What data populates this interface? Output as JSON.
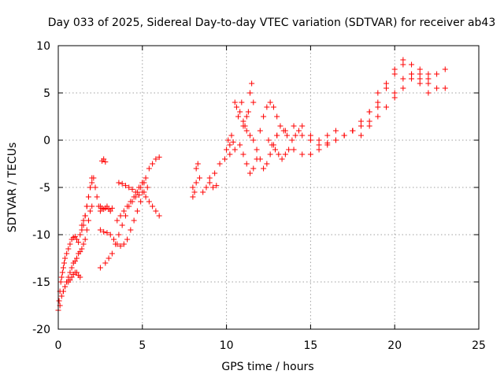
{
  "chart_data": {
    "type": "scatter",
    "title": "Day 033 of 2025, Sidereal Day-to-day VTEC variation (SDTVAR) for receiver ab43",
    "xlabel": "GPS time / hours",
    "ylabel": "SDTVAR / TECUs",
    "xlim": [
      0,
      25
    ],
    "ylim": [
      -20,
      10
    ],
    "x_ticks": [
      0,
      5,
      10,
      15,
      20,
      25
    ],
    "y_ticks": [
      -20,
      -15,
      -10,
      -5,
      0,
      5,
      10
    ],
    "x_tick_labels": [
      "0",
      "5",
      "10",
      "15",
      "20",
      "25"
    ],
    "y_tick_labels": [
      "-20",
      "-15",
      "-10",
      "-5",
      "0",
      "5",
      "10"
    ],
    "grid": true,
    "legend": "none",
    "marker": "+",
    "marker_color": "#ff0000",
    "series": [
      {
        "x": [
          0.0,
          0.05,
          0.1,
          0.15,
          0.2,
          0.25,
          0.3,
          0.35,
          0.4,
          0.5,
          0.6,
          0.7,
          0.8,
          0.9,
          1.0,
          1.1,
          1.2,
          1.3,
          1.4,
          1.5,
          1.6,
          1.7,
          1.8,
          1.9,
          2.0
        ],
        "y": [
          -18.0,
          -17.0,
          -16.0,
          -15.0,
          -14.5,
          -14.0,
          -13.5,
          -13.0,
          -12.5,
          -12.0,
          -11.5,
          -11.0,
          -10.5,
          -10.3,
          -10.2,
          -10.5,
          -10.8,
          -10.0,
          -9.5,
          -9.0,
          -8.0,
          -7.0,
          -6.0,
          -5.0,
          -4.0
        ]
      },
      {
        "x": [
          0.1,
          0.2,
          0.3,
          0.4,
          0.5,
          0.6,
          0.7,
          0.8,
          0.9,
          1.0,
          1.1,
          1.2,
          1.3,
          1.4,
          1.5,
          1.6,
          1.7,
          1.8,
          1.9,
          2.0
        ],
        "y": [
          -17.5,
          -16.5,
          -16.0,
          -15.5,
          -15.0,
          -14.5,
          -14.0,
          -13.5,
          -13.0,
          -12.8,
          -12.5,
          -12.0,
          -11.8,
          -11.5,
          -11.0,
          -10.5,
          -9.5,
          -8.5,
          -7.5,
          -7.0
        ]
      },
      {
        "x": [
          0.3,
          0.4,
          0.5,
          0.6,
          0.7,
          0.8,
          0.9,
          1.0,
          1.1,
          1.2,
          1.3
        ],
        "y": [
          -16.0,
          -15.5,
          -15.0,
          -15.0,
          -14.8,
          -14.5,
          -14.2,
          -14.0,
          -14.0,
          -14.3,
          -14.5
        ]
      },
      {
        "x": [
          1.4,
          1.5,
          1.6,
          1.7,
          1.8,
          1.9,
          2.0,
          2.1,
          2.2,
          2.3,
          2.4,
          2.5
        ],
        "y": [
          -9.0,
          -8.5,
          -8.0,
          -7.0,
          -6.0,
          -5.0,
          -4.5,
          -4.0,
          -5.0,
          -6.0,
          -7.0,
          -7.5
        ]
      },
      {
        "x": [
          2.5,
          2.6,
          2.7,
          2.8,
          2.9,
          3.0,
          3.1,
          3.2
        ],
        "y": [
          -7.0,
          -7.2,
          -7.3,
          -7.2,
          -7.0,
          -7.3,
          -7.5,
          -7.2
        ]
      },
      {
        "x": [
          2.6,
          2.7,
          2.8
        ],
        "y": [
          -2.2,
          -2.0,
          -2.3
        ]
      },
      {
        "x": [
          2.5,
          2.7,
          2.9,
          3.1,
          3.3,
          3.5,
          3.7,
          3.9,
          4.1,
          4.3,
          4.5,
          4.7,
          4.9,
          5.1,
          5.3
        ],
        "y": [
          -9.5,
          -9.7,
          -9.8,
          -10.0,
          -10.5,
          -11.0,
          -11.2,
          -11.0,
          -10.5,
          -9.5,
          -8.5,
          -7.5,
          -6.5,
          -5.5,
          -5.0
        ]
      },
      {
        "x": [
          2.5,
          2.8,
          3.0,
          3.2,
          3.4,
          3.6,
          3.8,
          4.0,
          4.2,
          4.4,
          4.6,
          4.8,
          5.0
        ],
        "y": [
          -13.5,
          -13.0,
          -12.5,
          -12.0,
          -11.0,
          -10.0,
          -9.0,
          -8.0,
          -7.0,
          -6.5,
          -6.0,
          -5.8,
          -5.5
        ]
      },
      {
        "x": [
          3.5,
          3.7,
          3.9,
          4.1,
          4.3,
          4.5,
          4.7,
          4.9,
          5.1
        ],
        "y": [
          -8.5,
          -8.0,
          -7.5,
          -7.0,
          -6.5,
          -6.0,
          -5.5,
          -5.0,
          -4.5
        ]
      },
      {
        "x": [
          3.6,
          3.8,
          4.0,
          4.2,
          4.4,
          4.6,
          4.8,
          5.0
        ],
        "y": [
          -4.5,
          -4.6,
          -4.8,
          -5.0,
          -5.2,
          -5.5,
          -5.0,
          -4.5
        ]
      },
      {
        "x": [
          5.0,
          5.2,
          5.4,
          5.6,
          5.8,
          6.0
        ],
        "y": [
          -4.5,
          -4.0,
          -3.0,
          -2.5,
          -2.0,
          -1.8
        ]
      },
      {
        "x": [
          5.2,
          5.4,
          5.6,
          5.8,
          6.0
        ],
        "y": [
          -6.0,
          -6.5,
          -7.0,
          -7.5,
          -8.0
        ]
      },
      {
        "x": [
          8.0,
          8.2,
          8.4,
          8.6,
          8.8,
          9.0,
          9.2,
          9.4
        ],
        "y": [
          -5.0,
          -4.5,
          -4.0,
          -5.5,
          -5.0,
          -4.5,
          -5.0,
          -4.8
        ]
      },
      {
        "x": [
          8.0,
          8.1,
          8.2,
          8.3
        ],
        "y": [
          -6.0,
          -5.5,
          -3.0,
          -2.5
        ]
      },
      {
        "x": [
          9.0,
          9.3,
          9.6,
          9.9,
          10.2,
          10.5
        ],
        "y": [
          -4.0,
          -3.5,
          -2.5,
          -2.0,
          -1.5,
          -1.0
        ]
      },
      {
        "x": [
          10.0,
          10.1,
          10.2,
          10.3,
          10.4
        ],
        "y": [
          -1.0,
          0.0,
          -0.5,
          0.5,
          -0.2
        ]
      },
      {
        "x": [
          10.5,
          10.6,
          10.7,
          10.8,
          10.9,
          11.0,
          11.1,
          11.2,
          11.3,
          11.4,
          11.5,
          11.6
        ],
        "y": [
          4.0,
          3.5,
          2.5,
          3.0,
          4.0,
          2.0,
          1.5,
          2.5,
          3.0,
          5.0,
          6.0,
          4.0
        ]
      },
      {
        "x": [
          10.8,
          11.0,
          11.2,
          11.4,
          11.6,
          11.8,
          12.0,
          12.2,
          12.4,
          12.6,
          12.8,
          13.0
        ],
        "y": [
          -0.5,
          -1.5,
          -2.5,
          -3.5,
          -3.0,
          -2.0,
          1.0,
          2.5,
          3.5,
          4.0,
          3.5,
          2.5
        ]
      },
      {
        "x": [
          11.0,
          11.2,
          11.4,
          11.6,
          11.8,
          12.0,
          12.2,
          12.4,
          12.6,
          12.8,
          13.0,
          13.2,
          13.4,
          13.6
        ],
        "y": [
          1.5,
          1.0,
          0.5,
          0.0,
          -1.0,
          -2.0,
          -3.0,
          -2.5,
          -1.5,
          -0.5,
          0.5,
          1.5,
          1.0,
          0.5
        ]
      },
      {
        "x": [
          12.5,
          12.7,
          12.9,
          13.1,
          13.3,
          13.5,
          13.7,
          13.9,
          14.1,
          14.3,
          14.5
        ],
        "y": [
          0.0,
          -0.5,
          -1.0,
          -1.5,
          -2.0,
          -1.5,
          -1.0,
          0.0,
          0.5,
          1.0,
          1.5
        ]
      },
      {
        "x": [
          13.0,
          13.5,
          14.0,
          14.5,
          15.0,
          15.5,
          16.0,
          16.5,
          17.0,
          17.5,
          18.0
        ],
        "y": [
          0.5,
          1.0,
          1.5,
          0.5,
          0.0,
          -0.5,
          -0.3,
          0.0,
          0.5,
          1.0,
          1.5
        ]
      },
      {
        "x": [
          14.0,
          14.5,
          15.0,
          15.5,
          16.0,
          16.5,
          17.0,
          17.5,
          18.0,
          18.5
        ],
        "y": [
          -1.0,
          -1.5,
          -1.5,
          -1.0,
          -0.5,
          0.0,
          0.5,
          1.0,
          1.5,
          2.0
        ]
      },
      {
        "x": [
          15.0,
          15.5,
          16.0,
          16.5,
          17.0,
          17.5,
          18.0,
          18.5,
          19.0
        ],
        "y": [
          0.5,
          0.0,
          0.5,
          1.0,
          0.5,
          1.0,
          2.0,
          3.0,
          3.5
        ]
      },
      {
        "x": [
          17.5,
          18.0,
          18.5,
          19.0,
          19.5,
          20.0,
          20.5,
          21.0,
          21.5,
          22.0
        ],
        "y": [
          1.0,
          2.0,
          3.0,
          4.0,
          5.5,
          7.0,
          8.5,
          8.0,
          7.5,
          7.0
        ]
      },
      {
        "x": [
          18.0,
          18.5,
          19.0,
          19.5,
          20.0,
          20.5,
          21.0,
          21.5,
          22.0,
          22.5,
          23.0
        ],
        "y": [
          0.5,
          1.5,
          2.5,
          3.5,
          5.0,
          6.5,
          7.0,
          6.5,
          6.0,
          5.5,
          5.5
        ]
      },
      {
        "x": [
          19.0,
          19.5,
          20.0,
          20.5,
          21.0,
          21.5,
          22.0
        ],
        "y": [
          5.0,
          6.0,
          7.5,
          8.0,
          7.0,
          6.0,
          5.0
        ]
      },
      {
        "x": [
          20.0,
          20.5,
          21.0,
          21.5,
          22.0,
          22.5,
          23.0
        ],
        "y": [
          4.5,
          5.5,
          6.5,
          7.0,
          6.5,
          7.0,
          7.5
        ]
      }
    ]
  }
}
